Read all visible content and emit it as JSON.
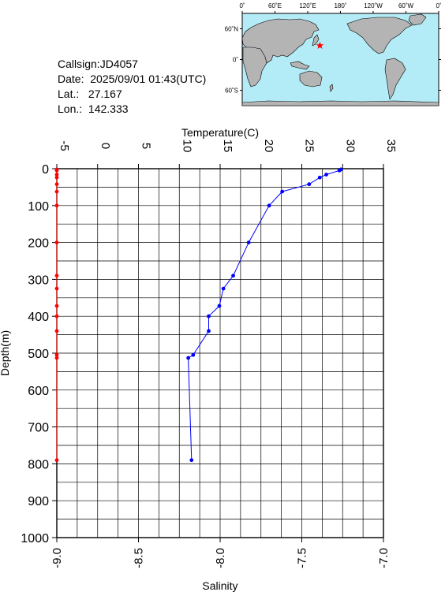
{
  "station": {
    "callsign_label": "Callsign:",
    "callsign": "JD4057",
    "date_label": "Date:",
    "date": "2025/09/01 01:43(UTC)",
    "lat_label": "Lat.:",
    "lat": "27.167",
    "lon_label": "Lon.:",
    "lon": "142.333"
  },
  "map": {
    "lon_ticks": [
      "0˚",
      "60˚E",
      "120˚E",
      "180˚",
      "120˚W",
      "60˚W",
      "0˚"
    ],
    "lat_ticks": [
      "60˚N",
      "0˚",
      "60˚S"
    ],
    "ocean_color": "#b3ecf6",
    "land_color": "#b4b4b4",
    "marker_color": "#ff0000",
    "marker_lon": 142.333,
    "marker_lat": 27.167
  },
  "chart_data": {
    "type": "line",
    "title": "",
    "ylabel": "Depth(m)",
    "ylim": [
      0,
      1000
    ],
    "y_ticks": [
      "0",
      "100",
      "200",
      "300",
      "400",
      "500",
      "600",
      "700",
      "800",
      "900",
      "1000"
    ],
    "top_axis": {
      "label": "Temperature(C)",
      "xlim": [
        -5,
        35
      ],
      "ticks": [
        "-5",
        "0",
        "5",
        "10",
        "15",
        "20",
        "25",
        "30",
        "35"
      ]
    },
    "bottom_axis": {
      "label": "Salinity",
      "xlim": [
        -9.0,
        -7.0
      ],
      "ticks": [
        "-9.0",
        "-8.5",
        "-8.0",
        "-7.5",
        "-7.0"
      ]
    },
    "series": [
      {
        "name": "",
        "axis": "temperature",
        "color": "#0000ff",
        "points": [
          [
            29.8,
            2
          ],
          [
            29.6,
            5
          ],
          [
            28.0,
            16
          ],
          [
            27.2,
            24
          ],
          [
            25.9,
            42
          ],
          [
            22.6,
            62
          ],
          [
            21.0,
            100
          ],
          [
            18.5,
            200
          ],
          [
            16.6,
            290
          ],
          [
            15.4,
            325
          ],
          [
            14.9,
            372
          ],
          [
            13.6,
            400
          ],
          [
            13.6,
            440
          ],
          [
            11.7,
            505
          ],
          [
            11.1,
            513
          ],
          [
            11.5,
            790
          ]
        ]
      },
      {
        "name": "",
        "axis": "salinity",
        "color": "#ff0000",
        "points": [
          [
            -9.0,
            2
          ],
          [
            -9.0,
            5
          ],
          [
            -9.0,
            16
          ],
          [
            -9.0,
            24
          ],
          [
            -9.0,
            42
          ],
          [
            -9.0,
            62
          ],
          [
            -9.0,
            100
          ],
          [
            -9.0,
            200
          ],
          [
            -9.0,
            290
          ],
          [
            -9.0,
            325
          ],
          [
            -9.0,
            372
          ],
          [
            -9.0,
            400
          ],
          [
            -9.0,
            440
          ],
          [
            -9.0,
            505
          ],
          [
            -9.0,
            513
          ],
          [
            -9.0,
            790
          ]
        ]
      }
    ],
    "grid": true
  }
}
